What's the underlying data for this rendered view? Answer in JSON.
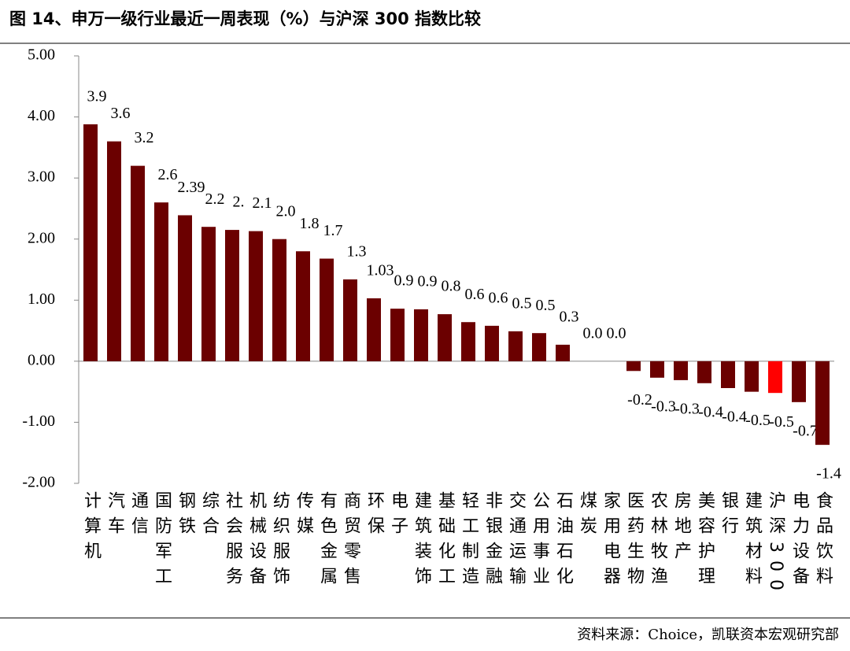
{
  "title": "图 14、申万一级行业最近一周表现（%）与沪深 300 指数比较",
  "source": "资料来源：Choice，凯联资本宏观研究部",
  "chart_data": {
    "type": "bar",
    "categories": [
      "计算机",
      "汽车",
      "通信",
      "国防军工",
      "钢铁",
      "综合",
      "社会服务",
      "机械设备",
      "纺织服饰",
      "传媒",
      "有色金属",
      "商贸零售",
      "环保",
      "电子",
      "建筑装饰",
      "基础化工",
      "轻工制造",
      "非银金融",
      "交通运输",
      "公用事业",
      "石油石化",
      "煤炭",
      "家用电器",
      "医药生物",
      "农林牧渔",
      "房地产",
      "美容护理",
      "银行",
      "建筑材料",
      "沪深300",
      "电力设备",
      "食品饮料"
    ],
    "values": [
      3.88,
      3.6,
      3.2,
      2.6,
      2.39,
      2.2,
      2.15,
      2.13,
      2.0,
      1.8,
      1.68,
      1.34,
      1.03,
      0.86,
      0.85,
      0.77,
      0.64,
      0.58,
      0.49,
      0.46,
      0.27,
      0.0,
      0.0,
      -0.16,
      -0.27,
      -0.31,
      -0.36,
      -0.44,
      -0.5,
      -0.52,
      -0.67,
      -1.37
    ],
    "value_labels": [
      "3.9",
      "3.6",
      "3.2",
      "2.6",
      "2.39",
      "2.2",
      "2.",
      "2.1",
      "2.0",
      "1.8",
      "1.7",
      "1.3",
      "1.03",
      "0.9",
      "0.9",
      "0.8",
      "0.6",
      "0.6",
      "0.5",
      "0.5",
      "0.3",
      "0.0",
      "0.0",
      "-0.2",
      "-0.3",
      "-0.3",
      "-0.4",
      "-0.4",
      "-0.5",
      "-0.5",
      "-0.7",
      "-1.4"
    ],
    "colors": [
      "#6b0000",
      "#6b0000",
      "#6b0000",
      "#6b0000",
      "#6b0000",
      "#6b0000",
      "#6b0000",
      "#6b0000",
      "#6b0000",
      "#6b0000",
      "#6b0000",
      "#6b0000",
      "#6b0000",
      "#6b0000",
      "#6b0000",
      "#6b0000",
      "#6b0000",
      "#6b0000",
      "#6b0000",
      "#6b0000",
      "#6b0000",
      "#6b0000",
      "#6b0000",
      "#6b0000",
      "#6b0000",
      "#6b0000",
      "#6b0000",
      "#6b0000",
      "#6b0000",
      "#ff0000",
      "#6b0000",
      "#6b0000"
    ],
    "ylim": [
      -2,
      5
    ],
    "yticks": [
      {
        "value": -2,
        "label": "-2.00"
      },
      {
        "value": -1,
        "label": "-1.00"
      },
      {
        "value": 0,
        "label": "0.00"
      },
      {
        "value": 1,
        "label": "1.00"
      },
      {
        "value": 2,
        "label": "2.00"
      },
      {
        "value": 3,
        "label": "3.00"
      },
      {
        "value": 4,
        "label": "4.00"
      },
      {
        "value": 5,
        "label": "5.00"
      }
    ]
  }
}
